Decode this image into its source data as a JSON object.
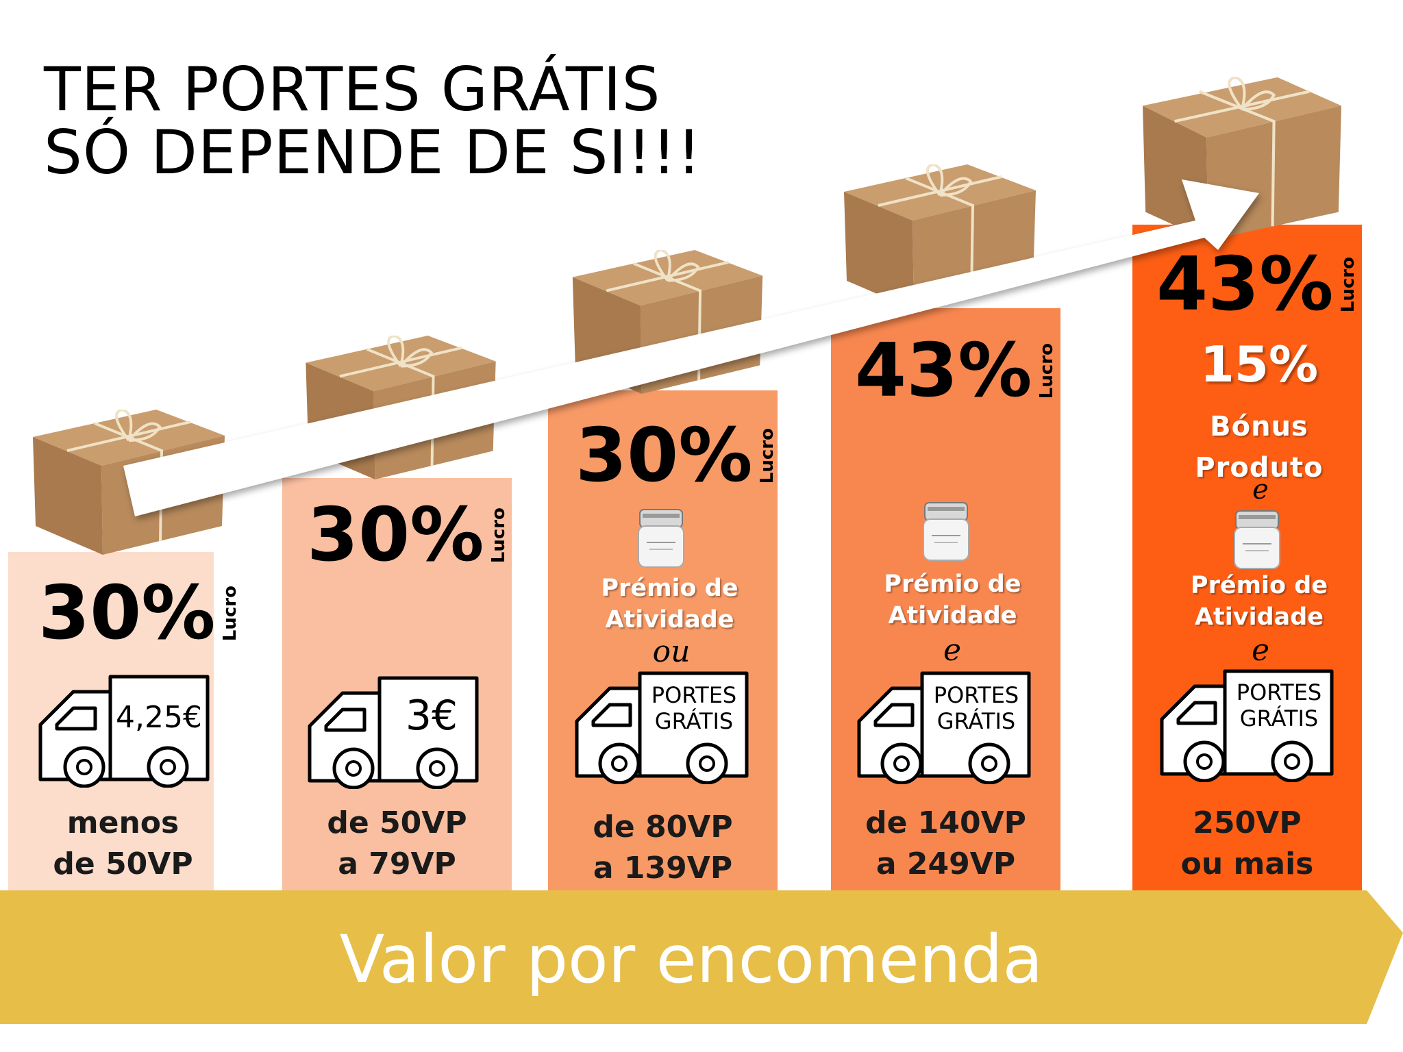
{
  "headline": {
    "line1": "TER PORTES GRÁTIS",
    "line2": "SÓ DEPENDE DE SI!!!"
  },
  "colors": {
    "tier1": "#fcdccb",
    "tier2": "#f9bfa0",
    "tier3": "#f89a66",
    "tier4": "#f8874f",
    "tier5": "#fd5e14",
    "band": "#e6be48",
    "package": "#b88a5c"
  },
  "lucro_label": "Lucro",
  "tiers": [
    {
      "percent": "30%",
      "truck_text": "4,25€",
      "range_line1": "menos",
      "range_line2": "de 50VP"
    },
    {
      "percent": "30%",
      "truck_text": "3€",
      "range_line1": "de 50VP",
      "range_line2": "a 79VP"
    },
    {
      "percent": "30%",
      "premio_line1": "Prémio de",
      "premio_line2": "Atividade",
      "conjunction": "ou",
      "truck_line1": "PORTES",
      "truck_line2": "GRÁTIS",
      "range_line1": "de 80VP",
      "range_line2": "a 139VP"
    },
    {
      "percent": "43%",
      "premio_line1": "Prémio de",
      "premio_line2": "Atividade",
      "conjunction": "e",
      "truck_line1": "PORTES",
      "truck_line2": "GRÁTIS",
      "range_line1": "de 140VP",
      "range_line2": "a 249VP"
    },
    {
      "percent": "43%",
      "bonus_percent": "15%",
      "bonus_line1": "Bónus",
      "bonus_line2": "Produto",
      "conjunction_top": "e",
      "premio_line1": "Prémio de",
      "premio_line2": "Atividade",
      "conjunction": "e",
      "truck_line1": "PORTES",
      "truck_line2": "GRÁTIS",
      "range_line1": "250VP",
      "range_line2": "ou mais"
    }
  ],
  "axis_label": "Valor por encomenda",
  "icons": [
    "package-icon",
    "truck-icon",
    "cream-jar-icon",
    "growth-arrow-icon"
  ]
}
